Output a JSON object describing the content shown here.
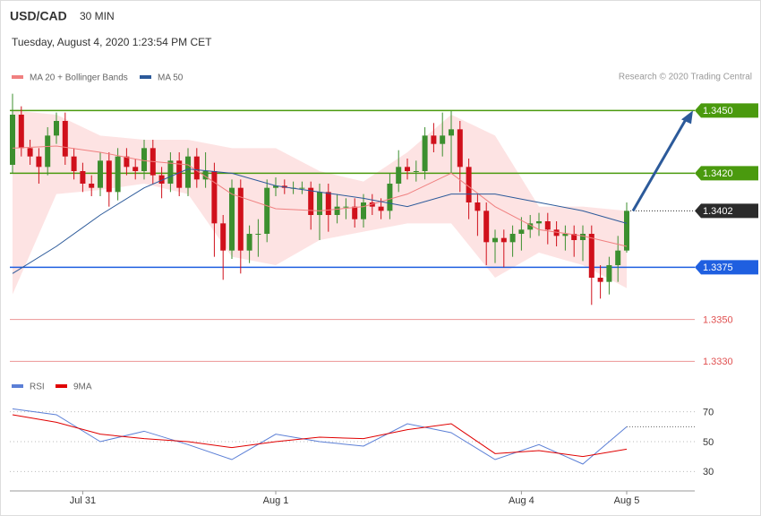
{
  "chart_data": [
    {
      "type": "candlestick",
      "title": "USD/CAD",
      "subtitle": "30 MIN",
      "timestamp": "Tuesday, August 4, 2020 1:23:54 PM CET",
      "credit": "Research © 2020 Trading Central",
      "categories": [
        null,
        null,
        null,
        null,
        null,
        null,
        null,
        null,
        "Jul 31",
        null,
        null,
        null,
        null,
        null,
        null,
        null,
        null,
        null,
        null,
        null,
        null,
        null,
        null,
        null,
        null,
        null,
        null,
        null,
        null,
        null,
        "Aug 1",
        null,
        null,
        null,
        null,
        null,
        null,
        null,
        null,
        null,
        null,
        null,
        null,
        null,
        null,
        null,
        null,
        null,
        null,
        null,
        null,
        null,
        null,
        null,
        null,
        null,
        null,
        null,
        "Aug 4",
        null,
        null,
        null,
        null,
        null,
        null,
        null,
        null,
        null,
        null,
        null,
        "Aug 5"
      ],
      "up_color": "#3c8f2f",
      "down_color": "#d0101b",
      "candles": [
        [
          1.3424,
          1.3458,
          1.342,
          1.3448
        ],
        [
          1.3448,
          1.3452,
          1.3428,
          1.3432
        ],
        [
          1.3432,
          1.3436,
          1.3424,
          1.3428
        ],
        [
          1.3428,
          1.3432,
          1.3415,
          1.3423
        ],
        [
          1.3423,
          1.3442,
          1.3419,
          1.3438
        ],
        [
          1.3438,
          1.3449,
          1.3434,
          1.3445
        ],
        [
          1.3445,
          1.3449,
          1.3424,
          1.3428
        ],
        [
          1.3428,
          1.3432,
          1.3417,
          1.3421
        ],
        [
          1.3421,
          1.3425,
          1.3411,
          1.3415
        ],
        [
          1.3415,
          1.3419,
          1.3409,
          1.3413
        ],
        [
          1.3413,
          1.343,
          1.3409,
          1.3426
        ],
        [
          1.3426,
          1.343,
          1.3404,
          1.3411
        ],
        [
          1.3411,
          1.3432,
          1.3407,
          1.3428
        ],
        [
          1.3428,
          1.3432,
          1.3419,
          1.3423
        ],
        [
          1.3423,
          1.3427,
          1.3417,
          1.3421
        ],
        [
          1.3421,
          1.3436,
          1.3417,
          1.3432
        ],
        [
          1.3432,
          1.3436,
          1.3415,
          1.3419
        ],
        [
          1.3419,
          1.3423,
          1.3408,
          1.3415
        ],
        [
          1.3415,
          1.343,
          1.3411,
          1.3426
        ],
        [
          1.3426,
          1.343,
          1.3409,
          1.3413
        ],
        [
          1.3413,
          1.3432,
          1.3409,
          1.3428
        ],
        [
          1.3428,
          1.3432,
          1.3413,
          1.3417
        ],
        [
          1.3417,
          1.343,
          1.3413,
          1.3421
        ],
        [
          1.3421,
          1.3425,
          1.338,
          1.3396
        ],
        [
          1.3396,
          1.34,
          1.3369,
          1.3383
        ],
        [
          1.3383,
          1.3417,
          1.3379,
          1.3413
        ],
        [
          1.3413,
          1.3417,
          1.3372,
          1.3383
        ],
        [
          1.3383,
          1.3395,
          1.3377,
          1.3391
        ],
        [
          1.3391,
          1.3398,
          1.338,
          1.3391
        ],
        [
          1.3391,
          1.3417,
          1.3387,
          1.3413
        ],
        [
          1.3413,
          1.3418,
          1.3409,
          1.3414
        ],
        [
          1.3414,
          1.3417,
          1.341,
          1.3413
        ],
        [
          1.3413,
          1.3416,
          1.341,
          1.3413
        ],
        [
          1.3413,
          1.3416,
          1.341,
          1.3413
        ],
        [
          1.3413,
          1.3416,
          1.3393,
          1.34
        ],
        [
          1.34,
          1.3415,
          1.3388,
          1.3411
        ],
        [
          1.3411,
          1.3415,
          1.3392,
          1.34
        ],
        [
          1.34,
          1.341,
          1.3396,
          1.3404
        ],
        [
          1.3404,
          1.3408,
          1.3398,
          1.3404
        ],
        [
          1.3404,
          1.3408,
          1.3394,
          1.3398
        ],
        [
          1.3398,
          1.341,
          1.3394,
          1.3406
        ],
        [
          1.3406,
          1.341,
          1.34,
          1.3404
        ],
        [
          1.3404,
          1.3408,
          1.3398,
          1.3402
        ],
        [
          1.3402,
          1.342,
          1.3398,
          1.3415
        ],
        [
          1.3415,
          1.3431,
          1.3411,
          1.3423
        ],
        [
          1.3423,
          1.3427,
          1.3417,
          1.3421
        ],
        [
          1.3421,
          1.3426,
          1.3416,
          1.3421
        ],
        [
          1.3421,
          1.3442,
          1.3417,
          1.3438
        ],
        [
          1.3438,
          1.3444,
          1.343,
          1.3434
        ],
        [
          1.3434,
          1.3449,
          1.3428,
          1.3438
        ],
        [
          1.3438,
          1.345,
          1.342,
          1.3441
        ],
        [
          1.3441,
          1.3445,
          1.3411,
          1.3423
        ],
        [
          1.3423,
          1.3427,
          1.3398,
          1.3406
        ],
        [
          1.3406,
          1.341,
          1.339,
          1.3402
        ],
        [
          1.3402,
          1.3406,
          1.3376,
          1.3387
        ],
        [
          1.3387,
          1.3393,
          1.3377,
          1.3389
        ],
        [
          1.3389,
          1.3393,
          1.3375,
          1.3387
        ],
        [
          1.3387,
          1.3395,
          1.338,
          1.3391
        ],
        [
          1.3391,
          1.3399,
          1.3383,
          1.3393
        ],
        [
          1.3393,
          1.34,
          1.3389,
          1.3396
        ],
        [
          1.3396,
          1.3401,
          1.339,
          1.3397
        ],
        [
          1.3397,
          1.3401,
          1.3386,
          1.3393
        ],
        [
          1.3393,
          1.3397,
          1.3385,
          1.339
        ],
        [
          1.339,
          1.3395,
          1.3383,
          1.3391
        ],
        [
          1.3391,
          1.3395,
          1.338,
          1.3388
        ],
        [
          1.3388,
          1.3395,
          1.3378,
          1.3391
        ],
        [
          1.3391,
          1.3395,
          1.3357,
          1.337
        ],
        [
          1.337,
          1.3376,
          1.336,
          1.3368
        ],
        [
          1.3368,
          1.338,
          1.3362,
          1.3376
        ],
        [
          1.3376,
          1.339,
          1.3368,
          1.3383
        ],
        [
          1.3383,
          1.3406,
          1.3382,
          1.3402
        ]
      ],
      "series": [
        {
          "name": "MA 20 + Bollinger Bands",
          "color": "#f08080",
          "band_color": "#fde3e3",
          "x": [
            0,
            5,
            10,
            15,
            20,
            25,
            30,
            35,
            40,
            45,
            50,
            55,
            60,
            65,
            70
          ],
          "values": [
            1.3432,
            1.3433,
            1.343,
            1.3426,
            1.3424,
            1.341,
            1.3403,
            1.3402,
            1.3404,
            1.341,
            1.342,
            1.3404,
            1.3393,
            1.339,
            1.3385
          ],
          "upper": [
            1.345,
            1.3448,
            1.3438,
            1.3436,
            1.3436,
            1.3432,
            1.3432,
            1.3421,
            1.3416,
            1.343,
            1.3448,
            1.3438,
            1.3404,
            1.3404,
            1.3402
          ],
          "lower": [
            1.3362,
            1.341,
            1.3412,
            1.3415,
            1.341,
            1.338,
            1.3376,
            1.3388,
            1.3392,
            1.3396,
            1.3396,
            1.337,
            1.3382,
            1.3376,
            1.3365
          ]
        },
        {
          "name": "MA 50",
          "color": "#2c5a9a",
          "x": [
            0,
            5,
            10,
            15,
            20,
            25,
            30,
            35,
            40,
            45,
            50,
            55,
            60,
            65,
            70
          ],
          "values": [
            1.3372,
            1.3385,
            1.34,
            1.3413,
            1.3422,
            1.342,
            1.3414,
            1.3411,
            1.3408,
            1.3404,
            1.341,
            1.341,
            1.3406,
            1.3402,
            1.3396
          ]
        }
      ],
      "levels": [
        {
          "value": 1.345,
          "label": "1.3450",
          "color": "#4a9a0e",
          "style": "box"
        },
        {
          "value": 1.342,
          "label": "1.3420",
          "color": "#4a9a0e",
          "style": "box"
        },
        {
          "value": 1.3402,
          "label": "1.3402",
          "color": "#2b2b2b",
          "style": "box-dotted"
        },
        {
          "value": 1.3375,
          "label": "1.3375",
          "color": "#1f5fe0",
          "style": "box"
        },
        {
          "value": 1.335,
          "label": "1.3350",
          "color": "#e05050",
          "style": "text"
        },
        {
          "value": 1.333,
          "label": "1.3330",
          "color": "#e05050",
          "style": "text"
        }
      ],
      "ylim": [
        1.3325,
        1.346
      ]
    },
    {
      "type": "line",
      "series": [
        {
          "name": "RSI",
          "color": "#5b7fd6",
          "x": [
            0,
            5,
            10,
            15,
            20,
            25,
            30,
            35,
            40,
            45,
            50,
            55,
            60,
            65,
            70
          ],
          "values": [
            72,
            68,
            50,
            57,
            48,
            38,
            55,
            50,
            47,
            62,
            56,
            38,
            48,
            35,
            60
          ]
        },
        {
          "name": "9MA",
          "color": "#e00000",
          "x": [
            0,
            5,
            10,
            15,
            20,
            25,
            30,
            35,
            40,
            45,
            50,
            55,
            60,
            65,
            70
          ],
          "values": [
            68,
            63,
            55,
            52,
            50,
            46,
            50,
            53,
            52,
            58,
            62,
            42,
            44,
            40,
            45
          ]
        }
      ],
      "ylim": [
        20,
        80
      ],
      "yticks": [
        30,
        50,
        70
      ]
    }
  ]
}
